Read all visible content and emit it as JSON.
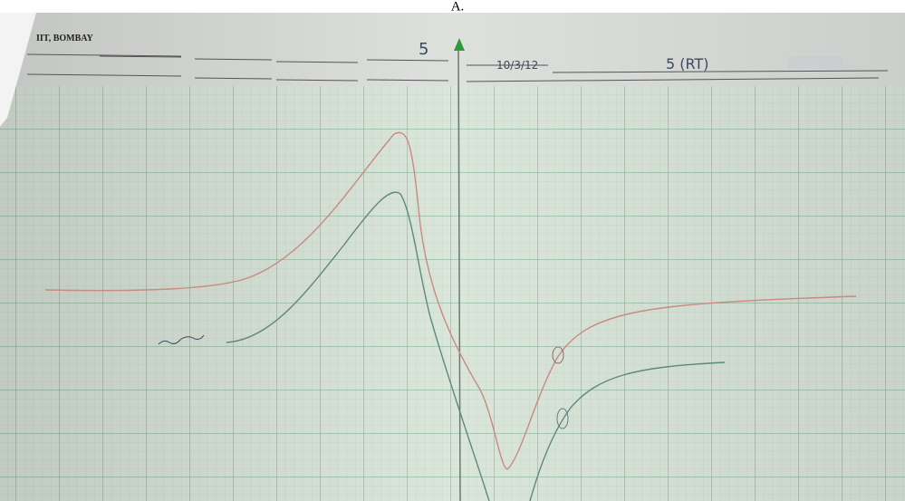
{
  "caption": "A.",
  "header": {
    "institute": "IIT, BOMBAY",
    "power": "5",
    "date": "10/3/12",
    "sample": "5 (RT)"
  }
}
